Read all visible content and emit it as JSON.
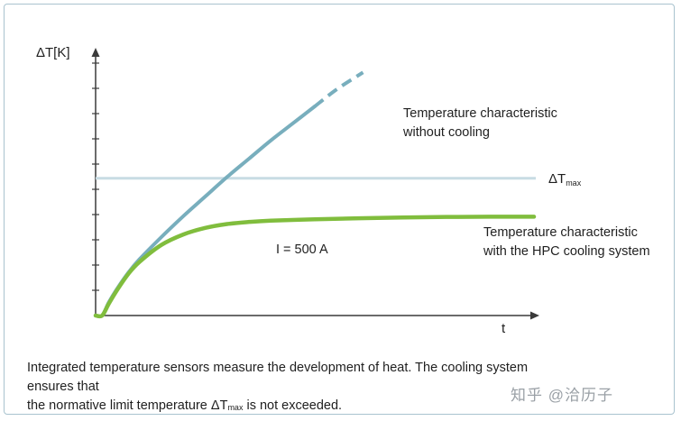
{
  "chart_data": {
    "type": "line",
    "title": "",
    "xlabel": "t",
    "ylabel": "ΔT[K]",
    "xlim": [
      0,
      10
    ],
    "ylim": [
      0,
      10
    ],
    "grid": false,
    "y_ticks_count": 10,
    "series": [
      {
        "name": "Temperature characteristic without cooling",
        "color": "#78aebd",
        "style": "solid-then-dashed",
        "label_lines": [
          "Temperature characteristic",
          "without cooling"
        ],
        "x": [
          0.0,
          0.15,
          0.3,
          0.5,
          0.75,
          1.0,
          1.5,
          2.0,
          2.5,
          3.0,
          3.5,
          4.0,
          4.5,
          5.0,
          5.5,
          6.1
        ],
        "y": [
          0.0,
          0.0,
          0.5,
          1.05,
          1.65,
          2.15,
          3.0,
          3.8,
          4.55,
          5.3,
          6.0,
          6.7,
          7.35,
          8.0,
          8.65,
          9.3
        ],
        "dashed_from_x": 5.0
      },
      {
        "name": "Temperature characteristic with the HPC cooling system",
        "color": "#80bd3d",
        "style": "solid",
        "label_lines": [
          "Temperature characteristic",
          "with the HPC cooling system"
        ],
        "x": [
          0.0,
          0.15,
          0.3,
          0.5,
          0.75,
          1.0,
          1.5,
          2.0,
          2.5,
          3.0,
          3.5,
          4.0,
          5.0,
          6.0,
          7.0,
          8.0,
          9.0,
          10.0
        ],
        "y": [
          0.0,
          0.0,
          0.45,
          1.0,
          1.6,
          2.05,
          2.7,
          3.1,
          3.35,
          3.5,
          3.58,
          3.63,
          3.68,
          3.72,
          3.75,
          3.77,
          3.78,
          3.78
        ]
      }
    ],
    "reference_line": {
      "name": "ΔTmax",
      "label_main": "ΔT",
      "label_sub": "max",
      "y": 5.25,
      "color": "#c8dce4"
    },
    "annotation": "I = 500 A"
  },
  "caption": {
    "line1": "Integrated temperature sensors measure the development of heat. The cooling system ensures that",
    "line2_before": "the normative limit temperature ΔT",
    "line2_sub": "max",
    "line2_after": " is not exceeded."
  },
  "watermark": "知乎 @洽历子"
}
